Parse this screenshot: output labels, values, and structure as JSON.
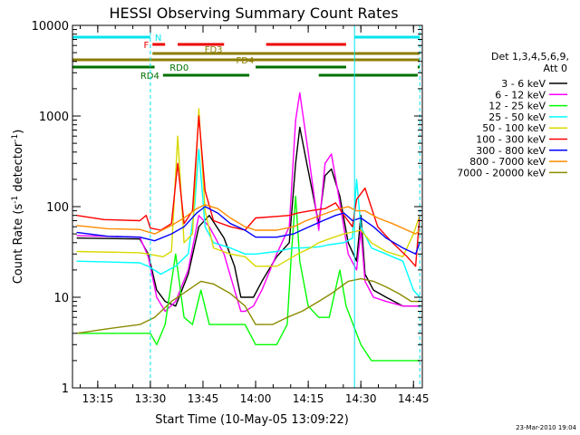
{
  "chart_data": {
    "type": "line",
    "title": "HESSI Observing Summary Count Rates",
    "xlabel": "Start Time (10-May-05 13:09:22)",
    "ylabel": "Count Rate (s⁻¹ detector⁻¹)",
    "ylabel_main": "Count Rate (s",
    "ylabel_mid": " detector",
    "ylabel_end": ")",
    "ylabel_sup": "-1",
    "yscale": "log",
    "xlim": [
      13.13,
      14.792
    ],
    "ylim": [
      1,
      10000
    ],
    "xticks": [
      {
        "t": 13.25,
        "label": "13:15"
      },
      {
        "t": 13.5,
        "label": "13:30"
      },
      {
        "t": 13.75,
        "label": "13:45"
      },
      {
        "t": 14.0,
        "label": "14:00"
      },
      {
        "t": 14.25,
        "label": "14:15"
      },
      {
        "t": 14.5,
        "label": "14:30"
      },
      {
        "t": 14.75,
        "label": "14:45"
      }
    ],
    "yticks": [
      {
        "v": 1,
        "label": "1"
      },
      {
        "v": 10,
        "label": "10"
      },
      {
        "v": 100,
        "label": "100"
      },
      {
        "v": 1000,
        "label": "1000"
      },
      {
        "v": 10000,
        "label": "10000"
      }
    ],
    "legend_header": [
      "Det 1,3,4,5,6,9,",
      "Att 0"
    ],
    "legend_position": "right",
    "series": [
      {
        "name": "3 - 6 keV",
        "color": "#000000",
        "points": [
          [
            13.15,
            45
          ],
          [
            13.45,
            44
          ],
          [
            13.49,
            30
          ],
          [
            13.53,
            12
          ],
          [
            13.57,
            9
          ],
          [
            13.62,
            8
          ],
          [
            13.68,
            18
          ],
          [
            13.73,
            60
          ],
          [
            13.78,
            80
          ],
          [
            13.85,
            45
          ],
          [
            13.9,
            22
          ],
          [
            13.93,
            10
          ],
          [
            13.95,
            10
          ],
          [
            13.99,
            10
          ],
          [
            14.03,
            15
          ],
          [
            14.1,
            28
          ],
          [
            14.16,
            40
          ],
          [
            14.19,
            300
          ],
          [
            14.21,
            750
          ],
          [
            14.25,
            250
          ],
          [
            14.3,
            65
          ],
          [
            14.33,
            220
          ],
          [
            14.36,
            260
          ],
          [
            14.4,
            130
          ],
          [
            14.44,
            40
          ],
          [
            14.48,
            25
          ],
          [
            14.5,
            80
          ],
          [
            14.52,
            18
          ],
          [
            14.56,
            12
          ],
          [
            14.62,
            10
          ],
          [
            14.7,
            8
          ],
          [
            14.75,
            8
          ],
          [
            14.78,
            8
          ]
        ]
      },
      {
        "name": "6 - 12 keV",
        "color": "#ff00ff",
        "points": [
          [
            13.15,
            48
          ],
          [
            13.45,
            46
          ],
          [
            13.49,
            28
          ],
          [
            13.53,
            10
          ],
          [
            13.57,
            7
          ],
          [
            13.62,
            9
          ],
          [
            13.68,
            20
          ],
          [
            13.73,
            80
          ],
          [
            13.78,
            60
          ],
          [
            13.85,
            30
          ],
          [
            13.9,
            12
          ],
          [
            13.93,
            7
          ],
          [
            13.95,
            7
          ],
          [
            13.99,
            8
          ],
          [
            14.03,
            12
          ],
          [
            14.1,
            30
          ],
          [
            14.16,
            60
          ],
          [
            14.19,
            900
          ],
          [
            14.21,
            1800
          ],
          [
            14.25,
            400
          ],
          [
            14.3,
            55
          ],
          [
            14.33,
            300
          ],
          [
            14.36,
            380
          ],
          [
            14.4,
            110
          ],
          [
            14.44,
            30
          ],
          [
            14.48,
            20
          ],
          [
            14.5,
            55
          ],
          [
            14.52,
            15
          ],
          [
            14.56,
            10
          ],
          [
            14.62,
            9
          ],
          [
            14.7,
            8
          ],
          [
            14.75,
            8
          ],
          [
            14.78,
            8
          ]
        ]
      },
      {
        "name": "12 - 25 keV",
        "color": "#00ff00",
        "points": [
          [
            13.15,
            4
          ],
          [
            13.5,
            4
          ],
          [
            13.53,
            3
          ],
          [
            13.57,
            5
          ],
          [
            13.62,
            30
          ],
          [
            13.66,
            6
          ],
          [
            13.7,
            5
          ],
          [
            13.74,
            12
          ],
          [
            13.78,
            5
          ],
          [
            13.84,
            5
          ],
          [
            13.9,
            5
          ],
          [
            13.95,
            5
          ],
          [
            14.0,
            3
          ],
          [
            14.1,
            3
          ],
          [
            14.15,
            5
          ],
          [
            14.17,
            30
          ],
          [
            14.19,
            130
          ],
          [
            14.21,
            25
          ],
          [
            14.25,
            8
          ],
          [
            14.3,
            6
          ],
          [
            14.35,
            6
          ],
          [
            14.4,
            20
          ],
          [
            14.43,
            8
          ],
          [
            14.5,
            3
          ],
          [
            14.55,
            2
          ],
          [
            14.6,
            2
          ],
          [
            14.7,
            2
          ],
          [
            14.78,
            2
          ]
        ]
      },
      {
        "name": "25 - 50 keV",
        "color": "#00ffff",
        "points": [
          [
            13.15,
            25
          ],
          [
            13.45,
            24
          ],
          [
            13.49,
            22
          ],
          [
            13.55,
            18
          ],
          [
            13.62,
            22
          ],
          [
            13.68,
            30
          ],
          [
            13.71,
            100
          ],
          [
            13.73,
            430
          ],
          [
            13.76,
            60
          ],
          [
            13.8,
            40
          ],
          [
            13.88,
            35
          ],
          [
            13.95,
            30
          ],
          [
            14.0,
            30
          ],
          [
            14.1,
            32
          ],
          [
            14.18,
            35
          ],
          [
            14.22,
            35
          ],
          [
            14.3,
            36
          ],
          [
            14.35,
            38
          ],
          [
            14.42,
            40
          ],
          [
            14.46,
            45
          ],
          [
            14.48,
            200
          ],
          [
            14.5,
            60
          ],
          [
            14.55,
            35
          ],
          [
            14.62,
            30
          ],
          [
            14.7,
            25
          ],
          [
            14.75,
            12
          ],
          [
            14.78,
            10
          ]
        ]
      },
      {
        "name": "50 - 100 keV",
        "color": "#d8d800",
        "points": [
          [
            13.15,
            32
          ],
          [
            13.45,
            31
          ],
          [
            13.49,
            30
          ],
          [
            13.56,
            28
          ],
          [
            13.6,
            32
          ],
          [
            13.63,
            600
          ],
          [
            13.66,
            40
          ],
          [
            13.7,
            50
          ],
          [
            13.73,
            1200
          ],
          [
            13.76,
            90
          ],
          [
            13.8,
            35
          ],
          [
            13.88,
            30
          ],
          [
            13.95,
            28
          ],
          [
            14.0,
            22
          ],
          [
            14.1,
            22
          ],
          [
            14.2,
            30
          ],
          [
            14.26,
            35
          ],
          [
            14.3,
            40
          ],
          [
            14.36,
            45
          ],
          [
            14.42,
            50
          ],
          [
            14.5,
            55
          ],
          [
            14.55,
            40
          ],
          [
            14.62,
            32
          ],
          [
            14.7,
            28
          ],
          [
            14.75,
            50
          ],
          [
            14.78,
            80
          ]
        ]
      },
      {
        "name": "100 - 300 keV",
        "color": "#ff0000",
        "points": [
          [
            13.15,
            80
          ],
          [
            13.28,
            72
          ],
          [
            13.45,
            70
          ],
          [
            13.48,
            80
          ],
          [
            13.5,
            58
          ],
          [
            13.55,
            55
          ],
          [
            13.6,
            65
          ],
          [
            13.63,
            300
          ],
          [
            13.66,
            65
          ],
          [
            13.7,
            90
          ],
          [
            13.73,
            1000
          ],
          [
            13.76,
            150
          ],
          [
            13.8,
            70
          ],
          [
            13.88,
            60
          ],
          [
            13.95,
            55
          ],
          [
            14.0,
            75
          ],
          [
            14.1,
            78
          ],
          [
            14.16,
            80
          ],
          [
            14.2,
            85
          ],
          [
            14.26,
            90
          ],
          [
            14.33,
            95
          ],
          [
            14.38,
            110
          ],
          [
            14.42,
            80
          ],
          [
            14.46,
            60
          ],
          [
            14.48,
            120
          ],
          [
            14.52,
            160
          ],
          [
            14.58,
            60
          ],
          [
            14.65,
            40
          ],
          [
            14.72,
            28
          ],
          [
            14.76,
            22
          ],
          [
            14.78,
            80
          ]
        ]
      },
      {
        "name": "300 - 800 keV",
        "color": "#0000ff",
        "points": [
          [
            13.15,
            52
          ],
          [
            13.3,
            47
          ],
          [
            13.45,
            46
          ],
          [
            13.52,
            42
          ],
          [
            13.6,
            50
          ],
          [
            13.66,
            60
          ],
          [
            13.72,
            85
          ],
          [
            13.76,
            100
          ],
          [
            13.82,
            85
          ],
          [
            13.88,
            65
          ],
          [
            13.95,
            55
          ],
          [
            14.0,
            46
          ],
          [
            14.1,
            46
          ],
          [
            14.18,
            50
          ],
          [
            14.24,
            58
          ],
          [
            14.32,
            70
          ],
          [
            14.38,
            80
          ],
          [
            14.42,
            85
          ],
          [
            14.46,
            70
          ],
          [
            14.5,
            75
          ],
          [
            14.56,
            60
          ],
          [
            14.62,
            45
          ],
          [
            14.7,
            35
          ],
          [
            14.76,
            30
          ],
          [
            14.78,
            40
          ]
        ]
      },
      {
        "name": "800 - 7000 keV",
        "color": "#ff8c00",
        "points": [
          [
            13.15,
            62
          ],
          [
            13.3,
            57
          ],
          [
            13.45,
            56
          ],
          [
            13.52,
            50
          ],
          [
            13.6,
            62
          ],
          [
            13.66,
            75
          ],
          [
            13.72,
            95
          ],
          [
            13.76,
            105
          ],
          [
            13.82,
            95
          ],
          [
            13.88,
            75
          ],
          [
            13.95,
            60
          ],
          [
            14.0,
            55
          ],
          [
            14.1,
            55
          ],
          [
            14.18,
            60
          ],
          [
            14.24,
            70
          ],
          [
            14.32,
            82
          ],
          [
            14.38,
            92
          ],
          [
            14.44,
            100
          ],
          [
            14.48,
            90
          ],
          [
            14.52,
            90
          ],
          [
            14.58,
            75
          ],
          [
            14.65,
            65
          ],
          [
            14.72,
            55
          ],
          [
            14.76,
            50
          ],
          [
            14.78,
            55
          ]
        ]
      },
      {
        "name": "7000 - 20000 keV",
        "color": "#8b8b00",
        "points": [
          [
            13.15,
            4
          ],
          [
            13.3,
            4.5
          ],
          [
            13.45,
            5
          ],
          [
            13.52,
            6
          ],
          [
            13.6,
            9
          ],
          [
            13.68,
            12
          ],
          [
            13.74,
            15
          ],
          [
            13.8,
            14
          ],
          [
            13.88,
            11
          ],
          [
            13.95,
            8
          ],
          [
            14.0,
            5
          ],
          [
            14.08,
            5
          ],
          [
            14.15,
            6
          ],
          [
            14.22,
            7
          ],
          [
            14.3,
            9
          ],
          [
            14.36,
            11
          ],
          [
            14.44,
            15
          ],
          [
            14.5,
            16
          ],
          [
            14.56,
            15
          ],
          [
            14.62,
            13
          ],
          [
            14.68,
            11
          ],
          [
            14.74,
            9
          ],
          [
            14.78,
            9
          ]
        ]
      }
    ],
    "vlines": [
      {
        "t": 13.13,
        "style": "solid"
      },
      {
        "t": 13.5,
        "style": "dashed"
      },
      {
        "t": 14.47,
        "style": "solid"
      },
      {
        "t": 14.78,
        "style": "dashed"
      }
    ],
    "state_bars": [
      {
        "label": "N",
        "color": "#00e5ee",
        "row": 0,
        "label_side": "right",
        "label_at": 13.5,
        "segments": [
          [
            13.13,
            13.5
          ],
          [
            14.47,
            14.78
          ]
        ]
      },
      {
        "label": "F",
        "color": "#ee0000",
        "row": 1,
        "label_side": "left",
        "label_at": 13.51,
        "segments": [
          [
            13.51,
            13.57
          ],
          [
            13.63,
            13.85
          ],
          [
            14.05,
            14.43
          ]
        ]
      },
      {
        "label": "FD3",
        "color": "#8b7d00",
        "row": 2,
        "label_side": "above",
        "label_at": 13.8,
        "segments": [
          [
            13.51,
            14.78
          ]
        ]
      },
      {
        "label": "FD4",
        "color": "#8b7d00",
        "row": 3,
        "label_side": "below",
        "label_at": 13.95,
        "segments": [
          [
            13.13,
            14.78
          ]
        ]
      },
      {
        "label": "RD0",
        "color": "#007000",
        "row": 4,
        "label_side": "right",
        "label_at": 13.57,
        "segments": [
          [
            13.13,
            13.52
          ],
          [
            14.0,
            14.43
          ],
          [
            14.77,
            14.78
          ]
        ]
      },
      {
        "label": "RD4",
        "color": "#007000",
        "row": 5,
        "label_side": "left",
        "label_at": 13.56,
        "segments": [
          [
            13.56,
            13.97
          ],
          [
            14.3,
            14.77
          ]
        ]
      }
    ]
  },
  "timestamp": "23-Mar-2010 19:04"
}
